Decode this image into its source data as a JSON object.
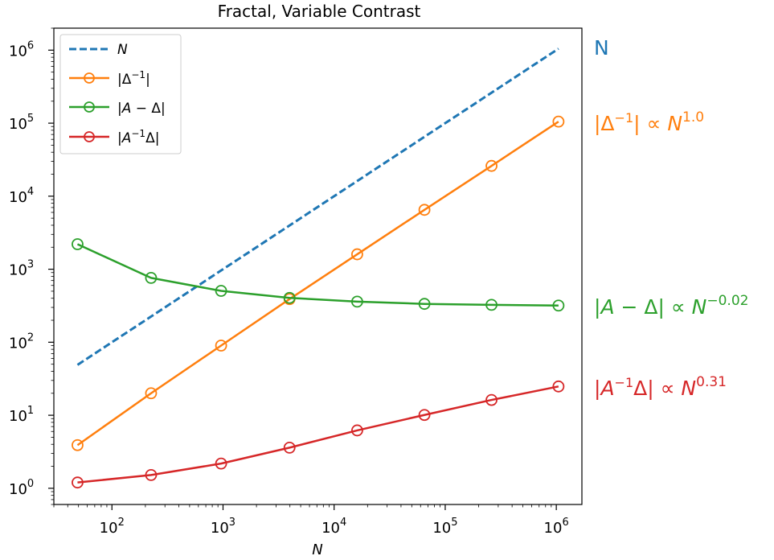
{
  "chart_data": {
    "type": "line",
    "title": "Fractal, Variable Contrast",
    "xlabel": "N",
    "ylabel": "",
    "xscale": "log",
    "yscale": "log",
    "xlim": [
      30,
      1700000
    ],
    "ylim": [
      0.6,
      2000000
    ],
    "grid": false,
    "legend_position": "upper-left",
    "x": [
      49,
      225,
      961,
      3969,
      16129,
      65025,
      261121,
      1046529
    ],
    "xticks": [
      {
        "value": 100,
        "base": "10",
        "exp": "2"
      },
      {
        "value": 1000,
        "base": "10",
        "exp": "3"
      },
      {
        "value": 10000,
        "base": "10",
        "exp": "4"
      },
      {
        "value": 100000,
        "base": "10",
        "exp": "5"
      },
      {
        "value": 1000000,
        "base": "10",
        "exp": "6"
      }
    ],
    "yticks": [
      {
        "value": 1,
        "base": "10",
        "exp": "0"
      },
      {
        "value": 10,
        "base": "10",
        "exp": "1"
      },
      {
        "value": 100,
        "base": "10",
        "exp": "2"
      },
      {
        "value": 1000,
        "base": "10",
        "exp": "3"
      },
      {
        "value": 10000,
        "base": "10",
        "exp": "4"
      },
      {
        "value": 100000,
        "base": "10",
        "exp": "5"
      },
      {
        "value": 1000000,
        "base": "10",
        "exp": "6"
      }
    ],
    "series": [
      {
        "key": "n",
        "color": "#1f77b4",
        "dashed": true,
        "markers": false,
        "values": [
          49,
          225,
          961,
          3969,
          16129,
          65025,
          261121,
          1046529
        ]
      },
      {
        "key": "delta-inv",
        "color": "#ff7f0e",
        "dashed": false,
        "markers": true,
        "values": [
          3.9,
          20,
          90,
          390,
          1600,
          6500,
          26000,
          105000
        ]
      },
      {
        "key": "a-minus-delta",
        "color": "#2ca02c",
        "dashed": false,
        "markers": true,
        "values": [
          2200,
          760,
          505,
          405,
          360,
          335,
          325,
          318
        ]
      },
      {
        "key": "a-inv-delta",
        "color": "#d62728",
        "dashed": false,
        "markers": true,
        "values": [
          1.2,
          1.52,
          2.18,
          3.6,
          6.2,
          10.1,
          16.2,
          24.8
        ]
      }
    ],
    "annotations": {
      "n": {
        "text": "N",
        "color": "#1f77b4"
      },
      "delta_exp": {
        "exponent": "1.0",
        "color": "#ff7f0e"
      },
      "a_minus_delta_exp": {
        "exponent": "−0.02",
        "color": "#2ca02c"
      },
      "a_inv_delta_exp": {
        "exponent": "0.31",
        "color": "#d62728"
      }
    }
  }
}
